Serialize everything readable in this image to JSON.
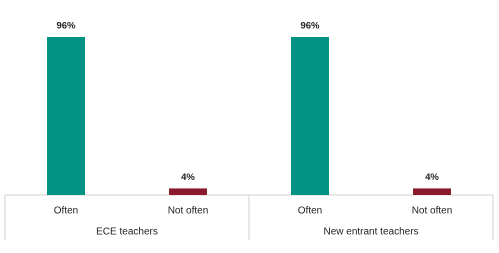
{
  "chart_data": {
    "type": "bar",
    "groups": [
      "ECE teachers",
      "New entrant teachers"
    ],
    "categories": [
      "Often",
      "Not often",
      "Often",
      "Not often"
    ],
    "values": [
      96,
      4,
      96,
      4
    ],
    "value_labels": [
      "96%",
      "4%",
      "96%",
      "4%"
    ],
    "colors": [
      "#009384",
      "#8b1a2f",
      "#009384",
      "#8b1a2f"
    ]
  }
}
